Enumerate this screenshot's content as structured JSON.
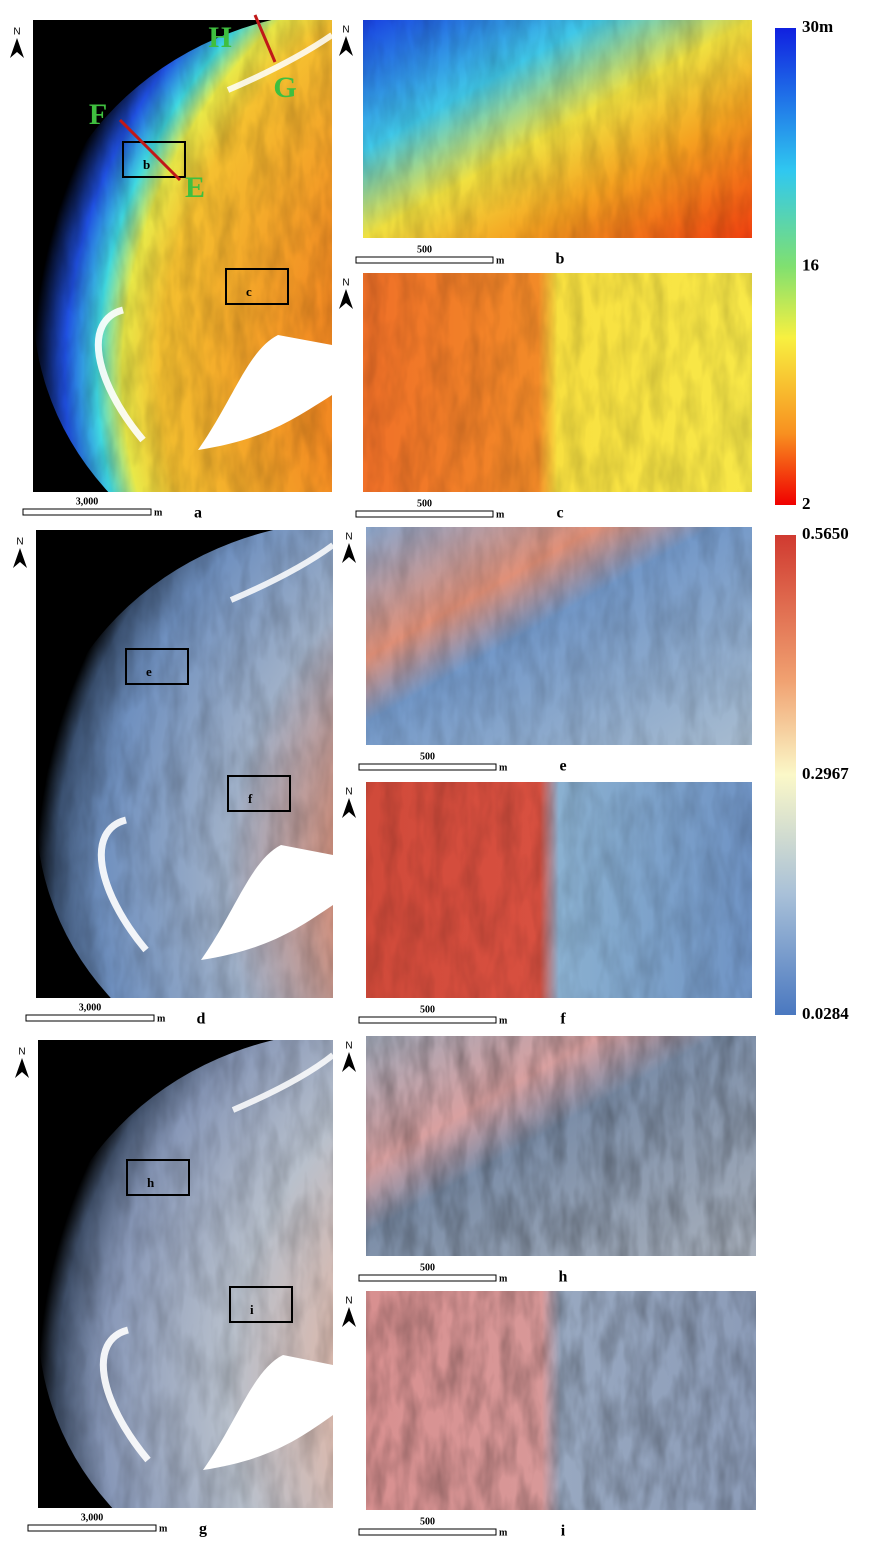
{
  "rows": [
    {
      "overview": {
        "label": "a",
        "north": "N",
        "scale_value": "3,000",
        "scale_unit": "m",
        "boxes": [
          "b",
          "c"
        ],
        "profiles": [
          {
            "start": "F",
            "end": "E"
          },
          {
            "start": "H",
            "end": "G"
          }
        ]
      },
      "details": [
        {
          "label": "b",
          "north": "N",
          "scale_value": "500",
          "scale_unit": "m"
        },
        {
          "label": "c",
          "north": "N",
          "scale_value": "500",
          "scale_unit": "m"
        }
      ]
    },
    {
      "overview": {
        "label": "d",
        "north": "N",
        "scale_value": "3,000",
        "scale_unit": "m",
        "boxes": [
          "e",
          "f"
        ]
      },
      "details": [
        {
          "label": "e",
          "north": "N",
          "scale_value": "500",
          "scale_unit": "m"
        },
        {
          "label": "f",
          "north": "N",
          "scale_value": "500",
          "scale_unit": "m"
        }
      ]
    },
    {
      "overview": {
        "label": "g",
        "north": "N",
        "scale_value": "3,000",
        "scale_unit": "m",
        "boxes": [
          "h",
          "i"
        ]
      },
      "details": [
        {
          "label": "h",
          "north": "N",
          "scale_value": "500",
          "scale_unit": "m"
        },
        {
          "label": "i",
          "north": "N",
          "scale_value": "500",
          "scale_unit": "m"
        }
      ]
    }
  ],
  "legends": [
    {
      "labels": [
        "30m",
        "16",
        "2"
      ]
    },
    {
      "labels": [
        "0.5650",
        "0.2967",
        "0.0284"
      ]
    }
  ]
}
